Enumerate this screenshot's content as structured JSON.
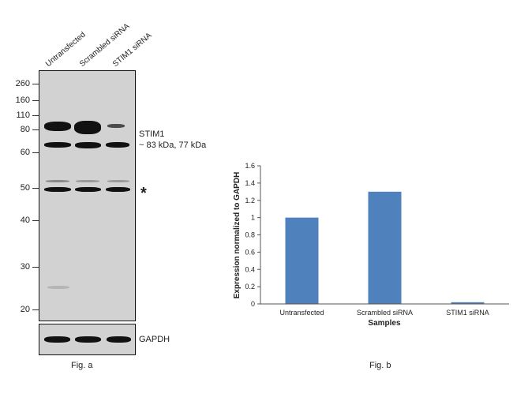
{
  "figure_a": {
    "lanes": [
      "Untransfected",
      "Scrambled siRNA",
      "STIM1 siRNA"
    ],
    "mw_markers": [
      "260",
      "160",
      "110",
      "80",
      "60",
      "50",
      "40",
      "30",
      "20"
    ],
    "target_label": "STIM1",
    "target_size": "~ 83 kDa, 77 kDa",
    "nonspecific_marker": "*",
    "loading_control": "GAPDH",
    "caption": "Fig. a"
  },
  "figure_b": {
    "caption": "Fig. b",
    "chart_data": {
      "type": "bar",
      "categories": [
        "Untransfected",
        "Scrambled siRNA",
        "STIM1 siRNA"
      ],
      "values": [
        1.0,
        1.3,
        0.02
      ],
      "xlabel": "Samples",
      "ylabel": "Expression normalized to GAPDH",
      "ylim": [
        0,
        1.6
      ],
      "yticks": [
        "0",
        "0.2",
        "0.4",
        "0.6",
        "0.8",
        "1",
        "1.2",
        "1.4",
        "1.6"
      ],
      "bar_color": "#4f81bd",
      "grid": false,
      "legend": "none"
    }
  }
}
